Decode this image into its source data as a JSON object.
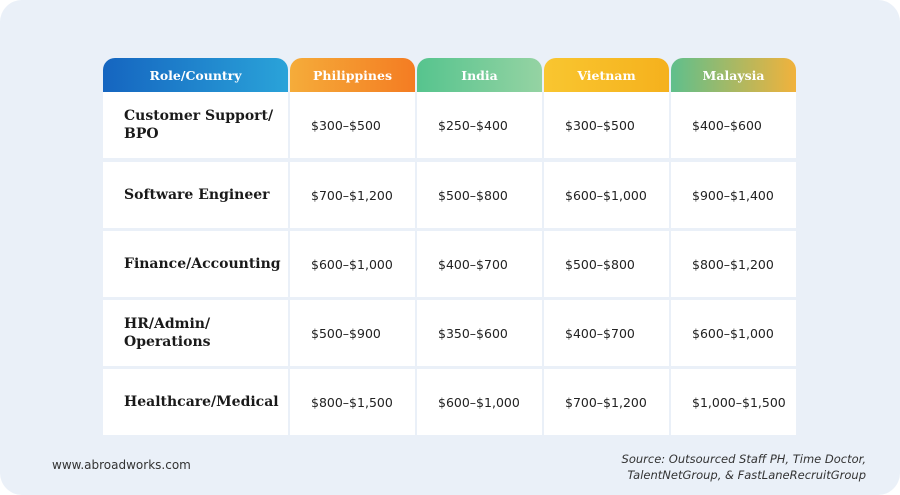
{
  "table": {
    "header": [
      "Role/Country",
      "Philippines",
      "India",
      "Vietnam",
      "Malaysia"
    ],
    "rows": [
      [
        "Customer Support/ BPO",
        "$300–$500",
        "$250–$400",
        "$300–$500",
        "$400–$600"
      ],
      [
        "Software Engineer",
        "$700–$1,200",
        "$500–$800",
        "$600–$1,000",
        "$900–$1,400"
      ],
      [
        "Finance/Accounting",
        "$600–$1,000",
        "$400–$700",
        "$500–$800",
        "$800–$1,200"
      ],
      [
        "HR/Admin/ Operations",
        "$500–$900",
        "$350–$600",
        "$400–$700",
        "$600–$1,000"
      ],
      [
        "Healthcare/Medical",
        "$800–$1,500",
        "$600–$1,000",
        "$700–$1,200",
        "$1,000–$1,500"
      ]
    ]
  },
  "footer": {
    "website": "www.abroadworks.com",
    "source": "Source: Outsourced Staff PH, Time Doctor, TalentNetGroup, & FastLaneRecruitGroup"
  }
}
